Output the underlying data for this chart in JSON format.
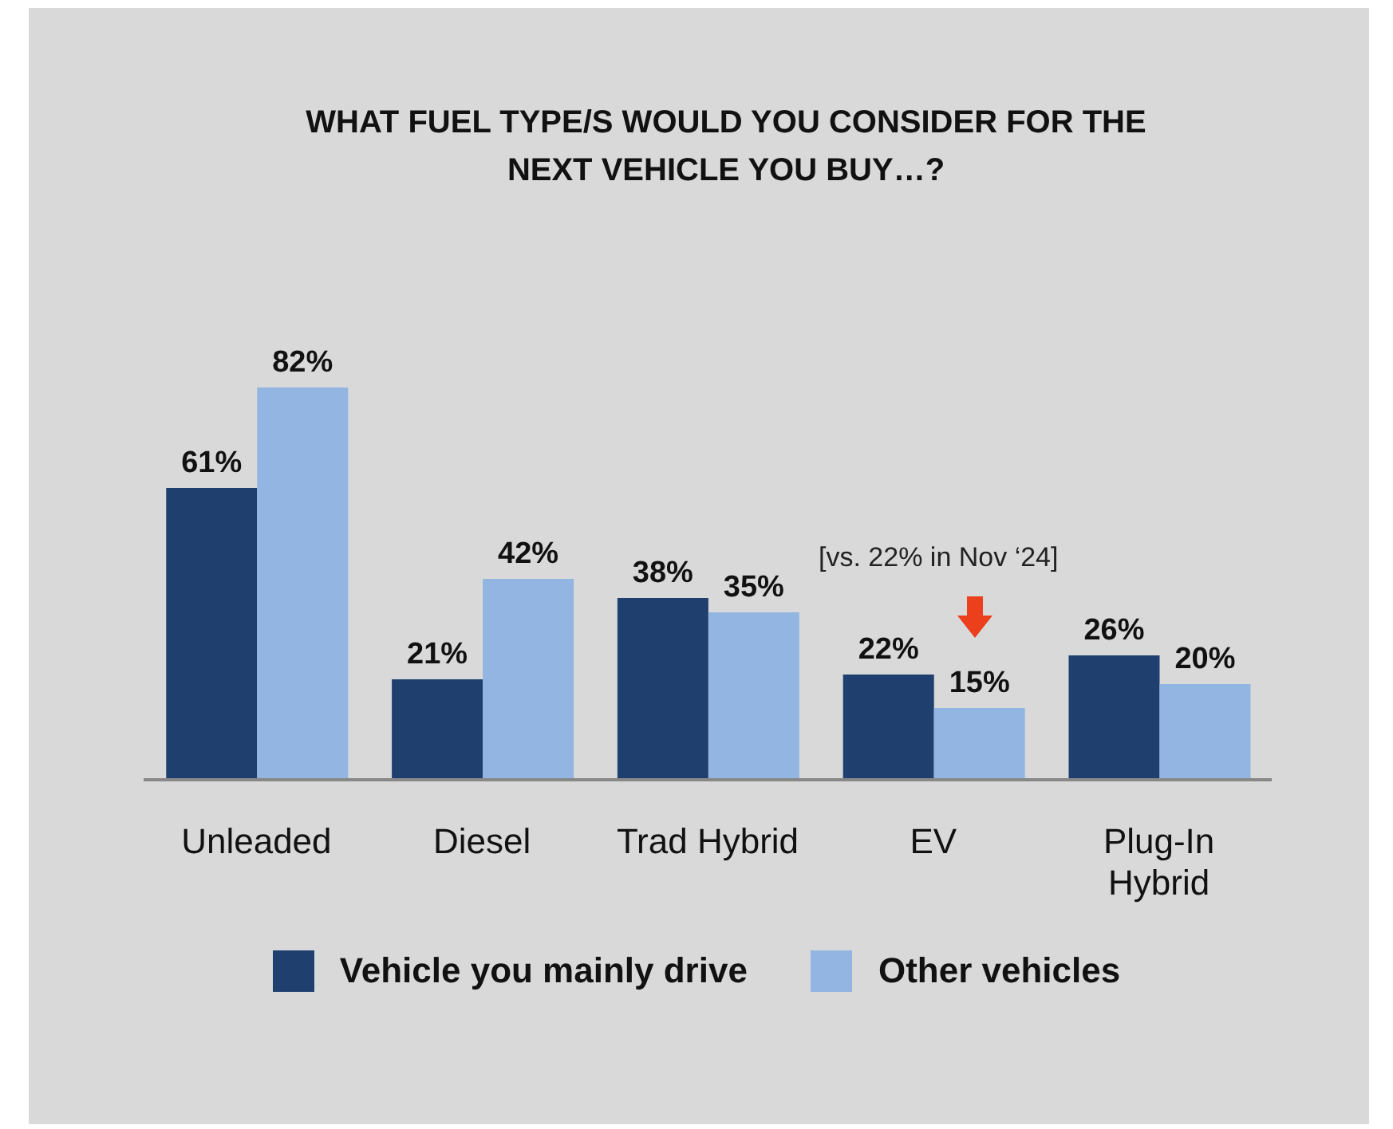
{
  "chart_data": {
    "type": "bar",
    "title": "WHAT FUEL TYPE/S WOULD YOU CONSIDER FOR THE NEXT VEHICLE YOU BUY…?",
    "categories": [
      "Unleaded",
      "Diesel",
      "Trad Hybrid",
      "EV",
      "Plug-In Hybrid"
    ],
    "series": [
      {
        "name": "Vehicle you mainly drive",
        "color": "#1f406e",
        "values": [
          61,
          21,
          38,
          22,
          26
        ],
        "value_labels": [
          "61%",
          "21%",
          "38%",
          "22%",
          "26%"
        ]
      },
      {
        "name": "Other vehicles",
        "color": "#92b5e1",
        "values": [
          82,
          42,
          35,
          15,
          20
        ],
        "value_labels": [
          "82%",
          "42%",
          "35%",
          "15%",
          "20%"
        ]
      }
    ],
    "annotations": [
      "[vs. 22% in Nov ‘24]"
    ],
    "legend": "bottom"
  }
}
